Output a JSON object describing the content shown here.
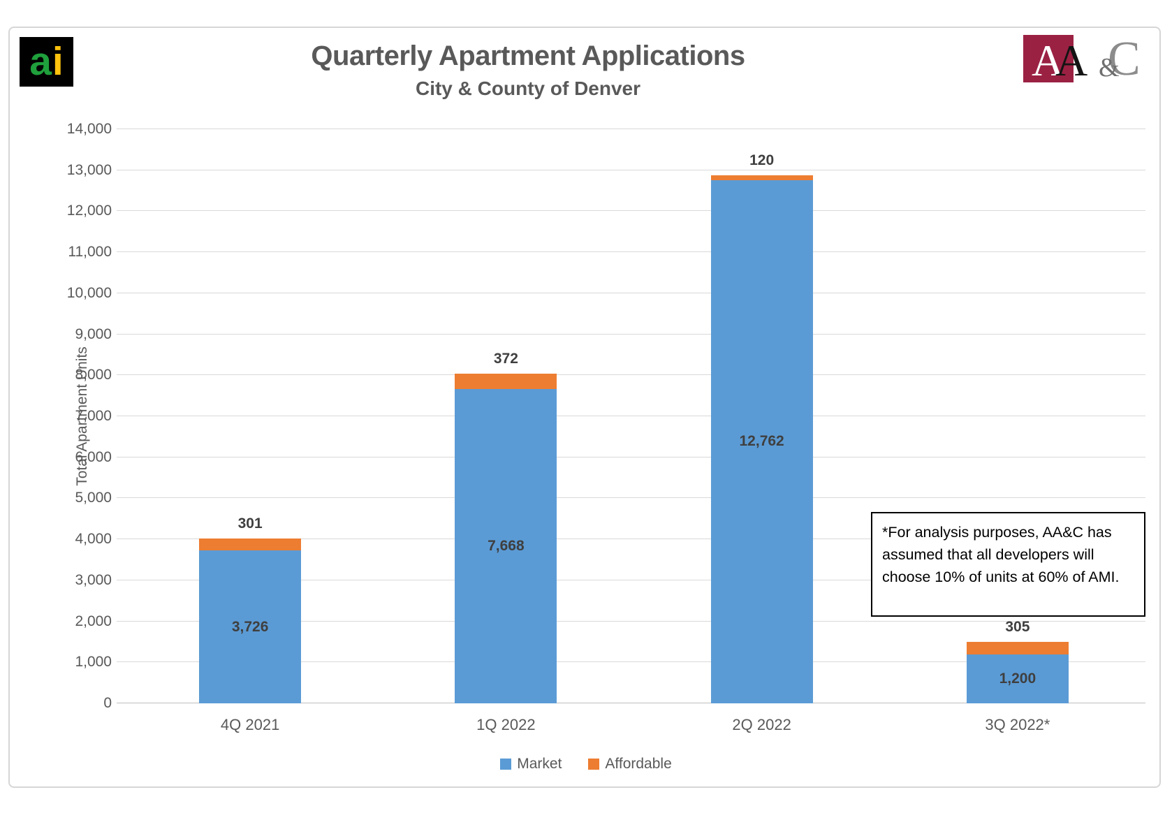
{
  "header": {
    "title": "Quarterly Apartment Applications",
    "subtitle": "City & County of Denver"
  },
  "logos": {
    "ai": {
      "letter_a": "a",
      "letter_i": "i"
    },
    "aac": {
      "letter_a1": "A",
      "letter_a2": "A",
      "ampersand": "&",
      "letter_c": "C"
    }
  },
  "annotation": {
    "text": "*For analysis purposes, AA&C has assumed that all developers will choose 10% of units at 60% of AMI."
  },
  "chart_data": {
    "type": "bar",
    "stacked": true,
    "title": "Quarterly Apartment Applications",
    "subtitle": "City & County of Denver",
    "ylabel": "Total Apartment Units",
    "xlabel": "",
    "categories": [
      "4Q 2021",
      "1Q 2022",
      "2Q 2022",
      "3Q 2022*"
    ],
    "series": [
      {
        "name": "Market",
        "color": "#5b9bd5",
        "values": [
          3726,
          7668,
          12762,
          1200
        ]
      },
      {
        "name": "Affordable",
        "color": "#ed7d31",
        "values": [
          301,
          372,
          120,
          305
        ]
      }
    ],
    "data_labels": {
      "market_inside": [
        "3,726",
        "7,668",
        "12,762",
        "1,200"
      ],
      "affordable_above": [
        "301",
        "372",
        "120",
        "305"
      ]
    },
    "ylim": [
      0,
      14000
    ],
    "ytick_step": 1000,
    "grid": true,
    "legend_position": "bottom"
  },
  "colors": {
    "market": "#5b9bd5",
    "affordable": "#ed7d31",
    "title_gray": "#595959",
    "label_gray": "#3f3f3f",
    "gridline": "#d9d9d9",
    "logo_maroon": "#9b2143",
    "logo_green": "#1fa03c",
    "logo_gold": "#ffc20e"
  }
}
